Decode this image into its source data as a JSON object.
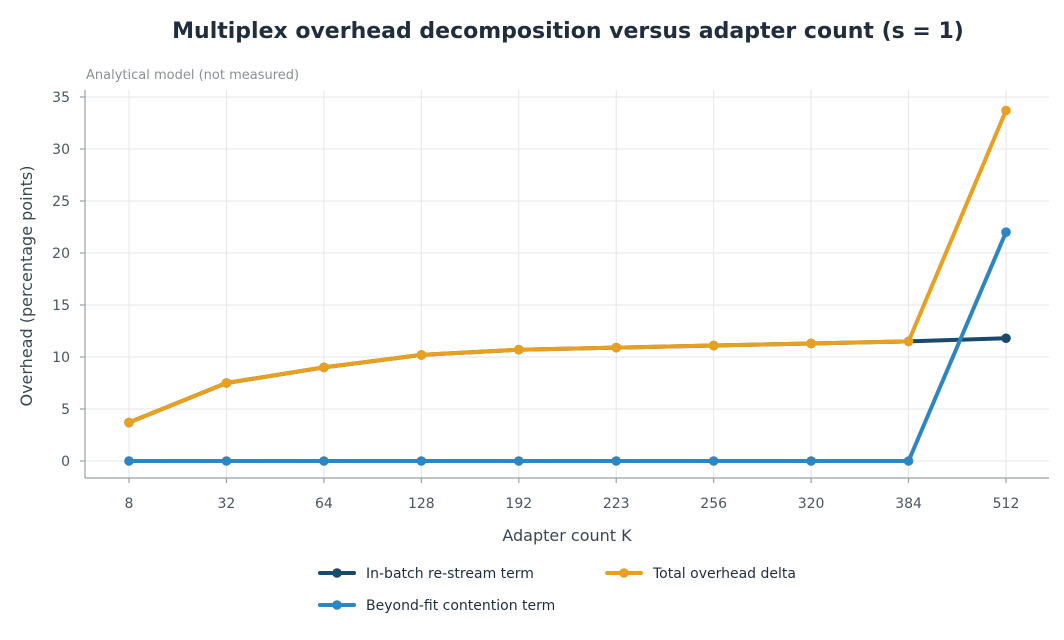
{
  "chart_data": {
    "type": "line",
    "title": "Multiplex overhead decomposition versus adapter count (s = 1)",
    "subtitle": "Analytical model (not measured)",
    "xlabel": "Adapter count K",
    "ylabel": "Overhead (percentage points)",
    "categories": [
      "8",
      "32",
      "64",
      "128",
      "192",
      "223",
      "256",
      "320",
      "384",
      "512"
    ],
    "ylim": [
      -1.5,
      35.5
    ],
    "yticks": [
      0,
      5,
      10,
      15,
      20,
      25,
      30,
      35
    ],
    "grid": true,
    "legend_position": "bottom",
    "series": [
      {
        "name": "In-batch re-stream term",
        "color": "#1a4a6b",
        "values": [
          3.7,
          7.5,
          9.0,
          10.2,
          10.7,
          10.9,
          11.1,
          11.3,
          11.5,
          11.8
        ]
      },
      {
        "name": "Beyond-fit contention term",
        "color": "#2e86c1",
        "values": [
          0,
          0,
          0,
          0,
          0,
          0,
          0,
          0,
          0,
          22.0
        ]
      },
      {
        "name": "Total overhead delta",
        "color": "#e8a020",
        "values": [
          3.7,
          7.5,
          9.0,
          10.2,
          10.7,
          10.9,
          11.1,
          11.3,
          11.5,
          33.7
        ]
      }
    ]
  }
}
